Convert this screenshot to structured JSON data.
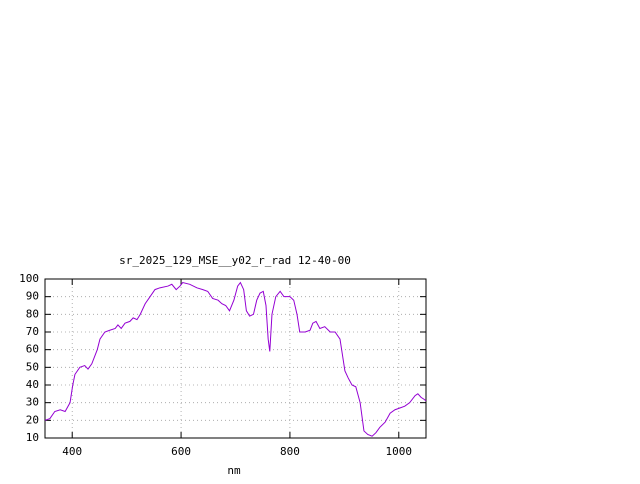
{
  "chart_data": {
    "type": "line",
    "title": "sr_2025_129_MSE__y02_r_rad 12-40-00",
    "x_label": "nm",
    "x": [
      350,
      359,
      368,
      378,
      387,
      396,
      401,
      405,
      414,
      423,
      429,
      436,
      446,
      451,
      460,
      469,
      479,
      484,
      490,
      497,
      506,
      512,
      519,
      525,
      534,
      543,
      552,
      561,
      576,
      583,
      591,
      598,
      603,
      616,
      629,
      640,
      649,
      658,
      668,
      675,
      682,
      689,
      697,
      704,
      709,
      715,
      720,
      726,
      733,
      739,
      745,
      751,
      756,
      760,
      763,
      767,
      774,
      782,
      789,
      800,
      807,
      813,
      818,
      828,
      837,
      842,
      848,
      855,
      864,
      874,
      883,
      892,
      897,
      901,
      907,
      914,
      921,
      929,
      936,
      943,
      951,
      958,
      965,
      975,
      984,
      993,
      1002,
      1011,
      1020,
      1030,
      1035,
      1041,
      1046,
      1050
    ],
    "values": [
      20,
      21,
      25,
      26,
      25,
      30,
      40,
      46,
      50,
      51,
      49,
      52,
      60,
      66,
      70,
      71,
      72,
      74,
      72,
      75,
      76,
      78,
      77,
      80,
      86,
      90,
      94,
      95,
      96,
      97,
      94,
      96,
      98,
      97,
      95,
      94,
      93,
      89,
      88,
      86,
      85,
      82,
      88,
      96,
      98,
      94,
      82,
      79,
      80,
      88,
      92,
      93,
      85,
      66,
      59,
      80,
      90,
      93,
      90,
      90,
      88,
      80,
      70,
      70,
      71,
      75,
      76,
      72,
      73,
      70,
      70,
      66,
      56,
      48,
      44,
      40,
      39,
      30,
      14,
      12,
      11,
      13,
      16,
      19,
      24,
      26,
      27,
      28,
      30,
      34,
      35,
      33,
      32,
      31
    ],
    "color": "#9400d3",
    "xlim": [
      350,
      1050
    ],
    "xticks": [
      400,
      600,
      800,
      1000
    ],
    "ylim": [
      10,
      100
    ],
    "yticks": [
      10,
      20,
      30,
      40,
      50,
      60,
      70,
      80,
      90,
      100
    ],
    "grid": true
  }
}
